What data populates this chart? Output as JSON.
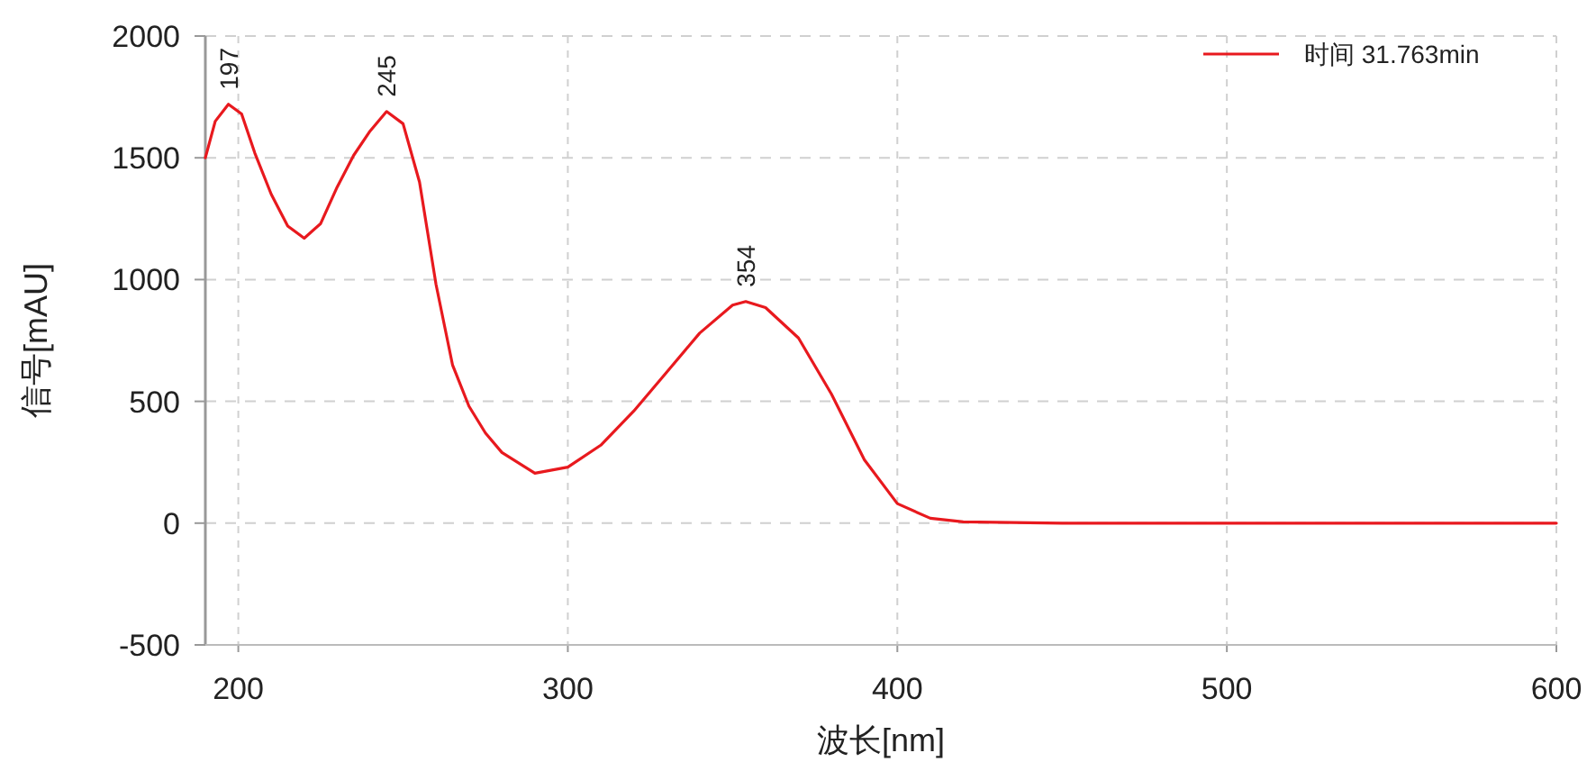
{
  "chart_data": {
    "type": "line",
    "xlabel": "波长[nm]",
    "ylabel": "信号[mAU]",
    "xlim": [
      190,
      600
    ],
    "xticks": [
      200,
      300,
      400,
      500,
      600
    ],
    "ylim": [
      -500,
      2000
    ],
    "yticks": [
      -500,
      0,
      500,
      1000,
      1500,
      2000
    ],
    "grid": true,
    "legend": "top right",
    "series": [
      {
        "name": "时间 31.763min",
        "color": "#e8191e",
        "x": [
          190,
          193,
          197,
          201,
          205,
          210,
          215,
          220,
          225,
          230,
          235,
          240,
          245,
          250,
          255,
          260,
          265,
          270,
          275,
          280,
          290,
          300,
          310,
          320,
          330,
          340,
          350,
          354,
          360,
          370,
          380,
          390,
          400,
          410,
          420,
          450,
          500,
          550,
          600
        ],
        "values": [
          1500,
          1650,
          1720,
          1680,
          1520,
          1350,
          1220,
          1170,
          1230,
          1380,
          1510,
          1610,
          1690,
          1640,
          1400,
          980,
          650,
          480,
          370,
          290,
          205,
          230,
          320,
          460,
          620,
          780,
          895,
          910,
          885,
          760,
          530,
          260,
          80,
          20,
          5,
          0,
          0,
          0,
          0
        ]
      }
    ],
    "annotations": [
      {
        "text": "197",
        "x": 197,
        "y": 1720
      },
      {
        "text": "245",
        "x": 245,
        "y": 1690
      },
      {
        "text": "354",
        "x": 354,
        "y": 910
      }
    ]
  }
}
